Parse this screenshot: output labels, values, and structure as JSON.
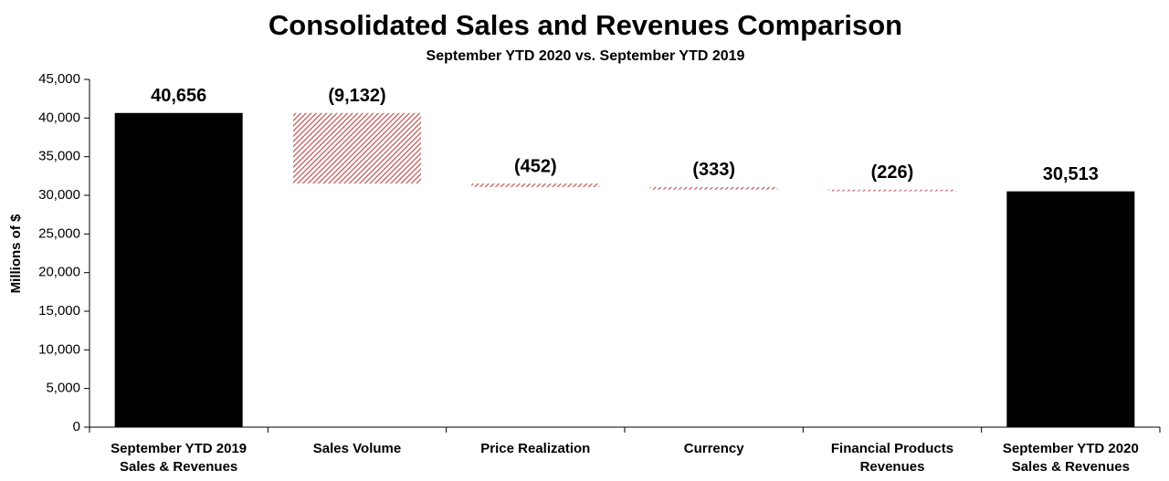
{
  "chart_data": {
    "type": "waterfall",
    "title": "Consolidated Sales and Revenues Comparison",
    "subtitle": "September YTD 2020 vs. September YTD 2019",
    "y_label": "Millions of $",
    "categories": [
      [
        "September YTD 2019",
        "Sales & Revenues"
      ],
      [
        "Sales Volume"
      ],
      [
        "Price Realization"
      ],
      [
        "Currency"
      ],
      [
        "Financial Products",
        "Revenues"
      ],
      [
        "September YTD 2020",
        "Sales & Revenues"
      ]
    ],
    "values": [
      40656,
      -9132,
      -452,
      -333,
      -226,
      30513
    ],
    "value_labels": [
      "40,656",
      "(9,132)",
      "(452)",
      "(333)",
      "(226)",
      "30,513"
    ],
    "total_color": "#000000",
    "change_color": "#c0504d",
    "ylim": [
      0,
      45000
    ],
    "yticks": [
      0,
      {
        "value": 5000,
        "label": "5,000"
      },
      {
        "value": 10000,
        "label": "10,000"
      },
      {
        "value": 15000,
        "label": "15,000"
      },
      {
        "value": 20000,
        "label": "20,000"
      },
      {
        "value": 25000,
        "label": "25,000"
      },
      {
        "value": 30000,
        "label": "30,000"
      },
      {
        "value": 35000,
        "label": "35,000"
      },
      {
        "value": 40000,
        "label": "40,000"
      },
      {
        "value": 45000,
        "label": "45,000"
      }
    ],
    "grid": false
  }
}
